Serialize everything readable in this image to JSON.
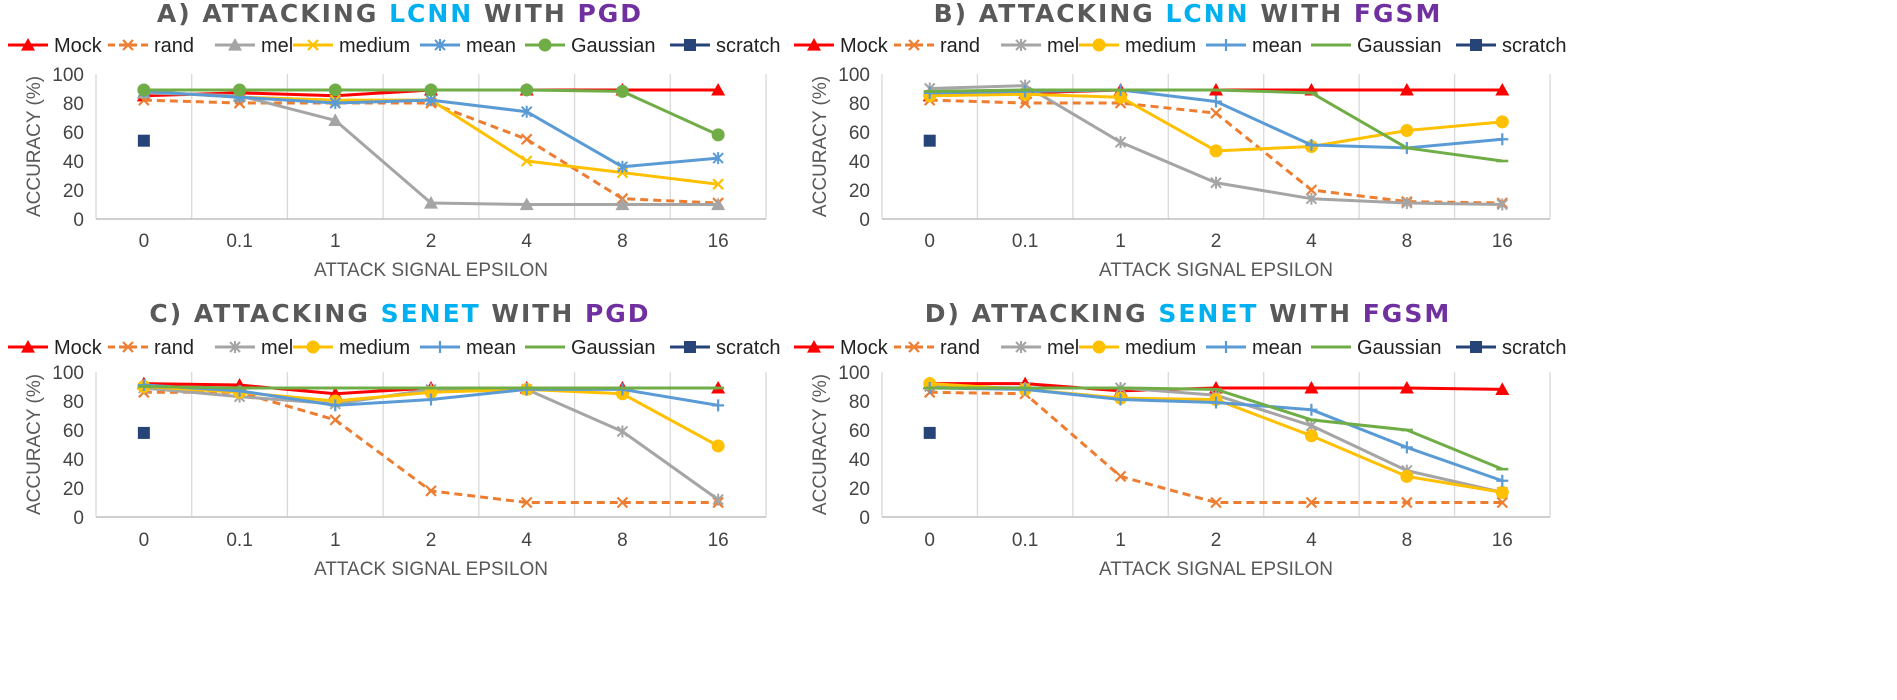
{
  "colors": {
    "title_main": "#595959",
    "highlight_model": "#00B0F0",
    "highlight_attack": "#7030A0",
    "grid": "#D9D9D9",
    "axis": "#BFBFBF"
  },
  "series_styles": [
    {
      "name": "Mock",
      "color": "#FF0000",
      "dash": false
    },
    {
      "name": "rand",
      "color": "#ED7D31",
      "dash": true
    },
    {
      "name": "mel",
      "color": "#A5A5A5",
      "dash": false
    },
    {
      "name": "medium",
      "color": "#FFC000",
      "dash": false
    },
    {
      "name": "mean",
      "color": "#5B9BD5",
      "dash": false
    },
    {
      "name": "Gaussian",
      "color": "#70AD47",
      "dash": false
    },
    {
      "name": "scratch",
      "color": "#264478",
      "dash": false
    }
  ],
  "chart_data": [
    {
      "type": "line",
      "title_parts": [
        "A) ATTACKING ",
        "LCNN",
        " WITH ",
        "PGD"
      ],
      "xlabel": "ATTACK SIGNAL EPSILON",
      "ylabel": "ACCURACY (%)",
      "categories": [
        "0",
        "0.1",
        "1",
        "2",
        "4",
        "8",
        "16"
      ],
      "ylim": [
        0,
        100
      ],
      "yticks": [
        0,
        20,
        40,
        60,
        80,
        100
      ],
      "series": [
        {
          "name": "Mock",
          "marker": "triangle",
          "values": [
            85,
            87,
            85,
            89,
            89,
            89,
            89
          ]
        },
        {
          "name": "rand",
          "marker": "x",
          "values": [
            82,
            80,
            80,
            80,
            55,
            14,
            11
          ]
        },
        {
          "name": "mel",
          "marker": "triangle",
          "values": [
            87,
            85,
            68,
            11,
            10,
            10,
            10
          ]
        },
        {
          "name": "medium",
          "marker": "x",
          "values": [
            88,
            84,
            82,
            82,
            40,
            32,
            24
          ]
        },
        {
          "name": "mean",
          "marker": "star",
          "values": [
            88,
            84,
            80,
            82,
            74,
            36,
            42
          ]
        },
        {
          "name": "Gaussian",
          "marker": "circle",
          "values": [
            89,
            89,
            89,
            89,
            89,
            88,
            58
          ]
        },
        {
          "name": "scratch",
          "marker": "square",
          "values": [
            54,
            null,
            null,
            null,
            null,
            null,
            null
          ]
        }
      ]
    },
    {
      "type": "line",
      "title_parts": [
        "B) ATTACKING ",
        "LCNN",
        " WITH ",
        "FGSM"
      ],
      "xlabel": "ATTACK SIGNAL EPSILON",
      "ylabel": "ACCURACY (%)",
      "categories": [
        "0",
        "0.1",
        "1",
        "2",
        "4",
        "8",
        "16"
      ],
      "ylim": [
        0,
        100
      ],
      "yticks": [
        0,
        20,
        40,
        60,
        80,
        100
      ],
      "series": [
        {
          "name": "Mock",
          "marker": "triangle",
          "values": [
            85,
            87,
            89,
            89,
            89,
            89,
            89
          ]
        },
        {
          "name": "rand",
          "marker": "x",
          "values": [
            82,
            80,
            80,
            73,
            20,
            12,
            11
          ]
        },
        {
          "name": "mel",
          "marker": "star",
          "values": [
            90,
            92,
            53,
            25,
            14,
            11,
            10
          ]
        },
        {
          "name": "medium",
          "marker": "circle",
          "values": [
            85,
            86,
            84,
            47,
            50,
            61,
            67
          ]
        },
        {
          "name": "mean",
          "marker": "plus",
          "values": [
            87,
            88,
            89,
            81,
            51,
            49,
            55
          ]
        },
        {
          "name": "Gaussian",
          "marker": "dash",
          "values": [
            88,
            89,
            89,
            89,
            87,
            49,
            40
          ]
        },
        {
          "name": "scratch",
          "marker": "square",
          "values": [
            54,
            null,
            null,
            null,
            null,
            null,
            null
          ]
        }
      ]
    },
    {
      "type": "line",
      "title_parts": [
        "C) ATTACKING ",
        "SENET",
        " WITH ",
        "PGD"
      ],
      "xlabel": "ATTACK SIGNAL EPSILON",
      "ylabel": "ACCURACY (%)",
      "categories": [
        "0",
        "0.1",
        "1",
        "2",
        "4",
        "8",
        "16"
      ],
      "ylim": [
        0,
        100
      ],
      "yticks": [
        0,
        20,
        40,
        60,
        80,
        100
      ],
      "series": [
        {
          "name": "Mock",
          "marker": "triangle",
          "values": [
            92,
            91,
            85,
            89,
            89,
            89,
            89
          ]
        },
        {
          "name": "rand",
          "marker": "x",
          "values": [
            86,
            86,
            67,
            18,
            10,
            10,
            10
          ]
        },
        {
          "name": "mel",
          "marker": "star",
          "values": [
            89,
            83,
            78,
            88,
            88,
            59,
            12
          ]
        },
        {
          "name": "medium",
          "marker": "circle",
          "values": [
            90,
            86,
            80,
            86,
            88,
            85,
            49
          ]
        },
        {
          "name": "mean",
          "marker": "plus",
          "values": [
            91,
            87,
            77,
            81,
            88,
            88,
            77
          ]
        },
        {
          "name": "Gaussian",
          "marker": "dash",
          "values": [
            90,
            89,
            89,
            89,
            89,
            89,
            89
          ]
        },
        {
          "name": "scratch",
          "marker": "square",
          "values": [
            58,
            null,
            null,
            null,
            null,
            null,
            null
          ]
        }
      ]
    },
    {
      "type": "line",
      "title_parts": [
        "D) ATTACKING ",
        "SENET",
        " WITH ",
        "FGSM"
      ],
      "xlabel": "ATTACK SIGNAL EPSILON",
      "ylabel": "ACCURACY (%)",
      "categories": [
        "0",
        "0.1",
        "1",
        "2",
        "4",
        "8",
        "16"
      ],
      "ylim": [
        0,
        100
      ],
      "yticks": [
        0,
        20,
        40,
        60,
        80,
        100
      ],
      "series": [
        {
          "name": "Mock",
          "marker": "triangle",
          "values": [
            92,
            92,
            87,
            89,
            89,
            89,
            88
          ]
        },
        {
          "name": "rand",
          "marker": "x",
          "values": [
            86,
            85,
            28,
            10,
            10,
            10,
            10
          ]
        },
        {
          "name": "mel",
          "marker": "star",
          "values": [
            90,
            89,
            89,
            84,
            63,
            32,
            17
          ]
        },
        {
          "name": "medium",
          "marker": "circle",
          "values": [
            92,
            88,
            82,
            81,
            56,
            28,
            17
          ]
        },
        {
          "name": "mean",
          "marker": "plus",
          "values": [
            89,
            88,
            81,
            79,
            74,
            48,
            25
          ]
        },
        {
          "name": "Gaussian",
          "marker": "dash",
          "values": [
            89,
            89,
            89,
            88,
            67,
            60,
            33
          ]
        },
        {
          "name": "scratch",
          "marker": "square",
          "values": [
            58,
            null,
            null,
            null,
            null,
            null,
            null
          ]
        }
      ]
    }
  ]
}
